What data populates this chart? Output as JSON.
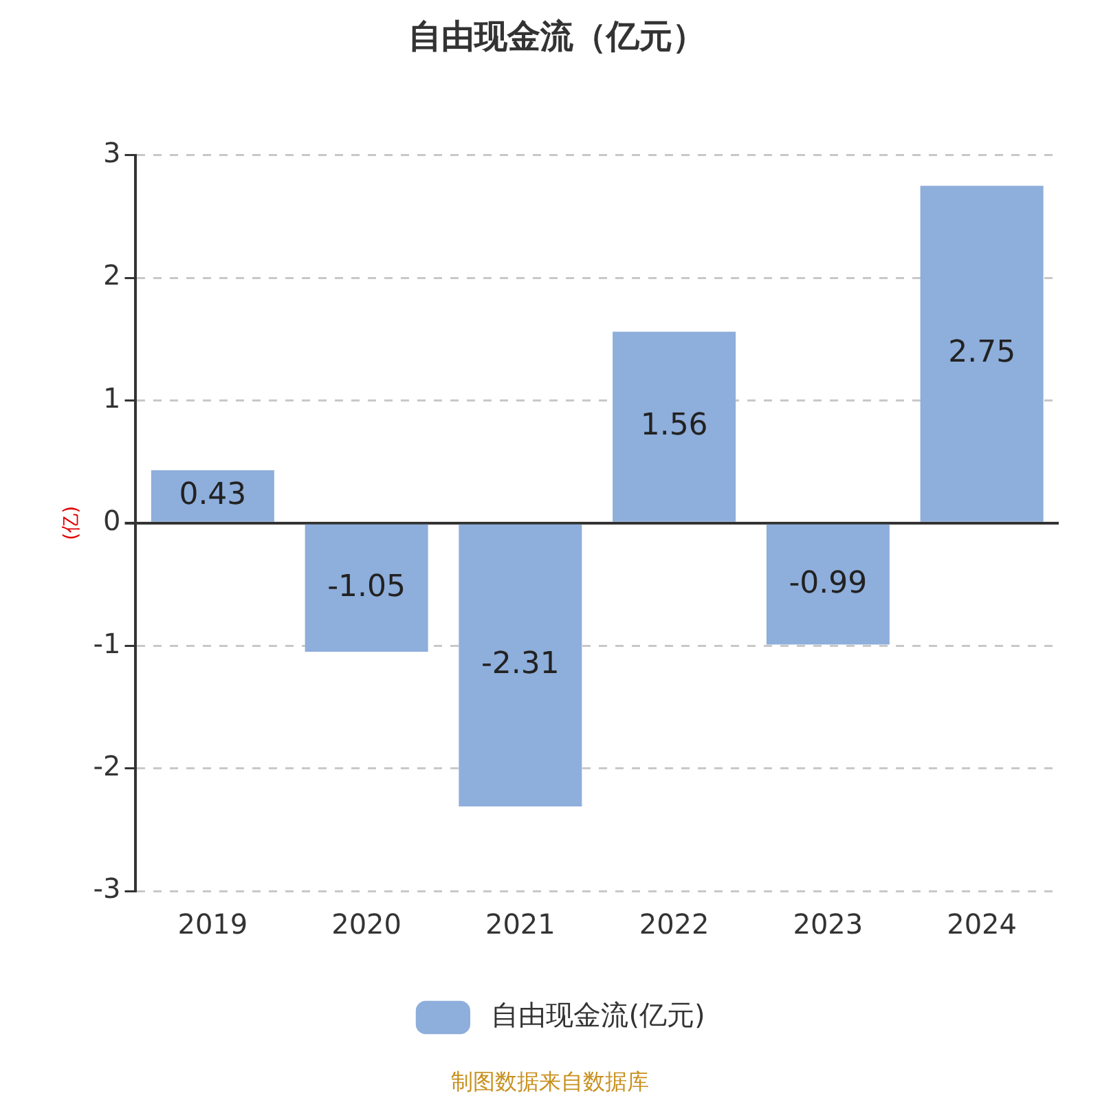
{
  "chart_data": {
    "type": "bar",
    "title": "自由现金流（亿元）",
    "ylabel": "(亿)",
    "categories": [
      "2019",
      "2020",
      "2021",
      "2022",
      "2023",
      "2024"
    ],
    "series": [
      {
        "name": "自由现金流(亿元)",
        "color": "#8eaedb",
        "values": [
          0.43,
          -1.05,
          -2.31,
          1.56,
          -0.99,
          2.75
        ]
      }
    ],
    "ylim": [
      -3,
      3
    ],
    "yticks": [
      -3,
      -2,
      -1,
      0,
      1,
      2,
      3
    ],
    "grid": "y",
    "legend": "bottom",
    "data_labels": true,
    "annotations": [
      "制图数据来自数据库"
    ]
  }
}
